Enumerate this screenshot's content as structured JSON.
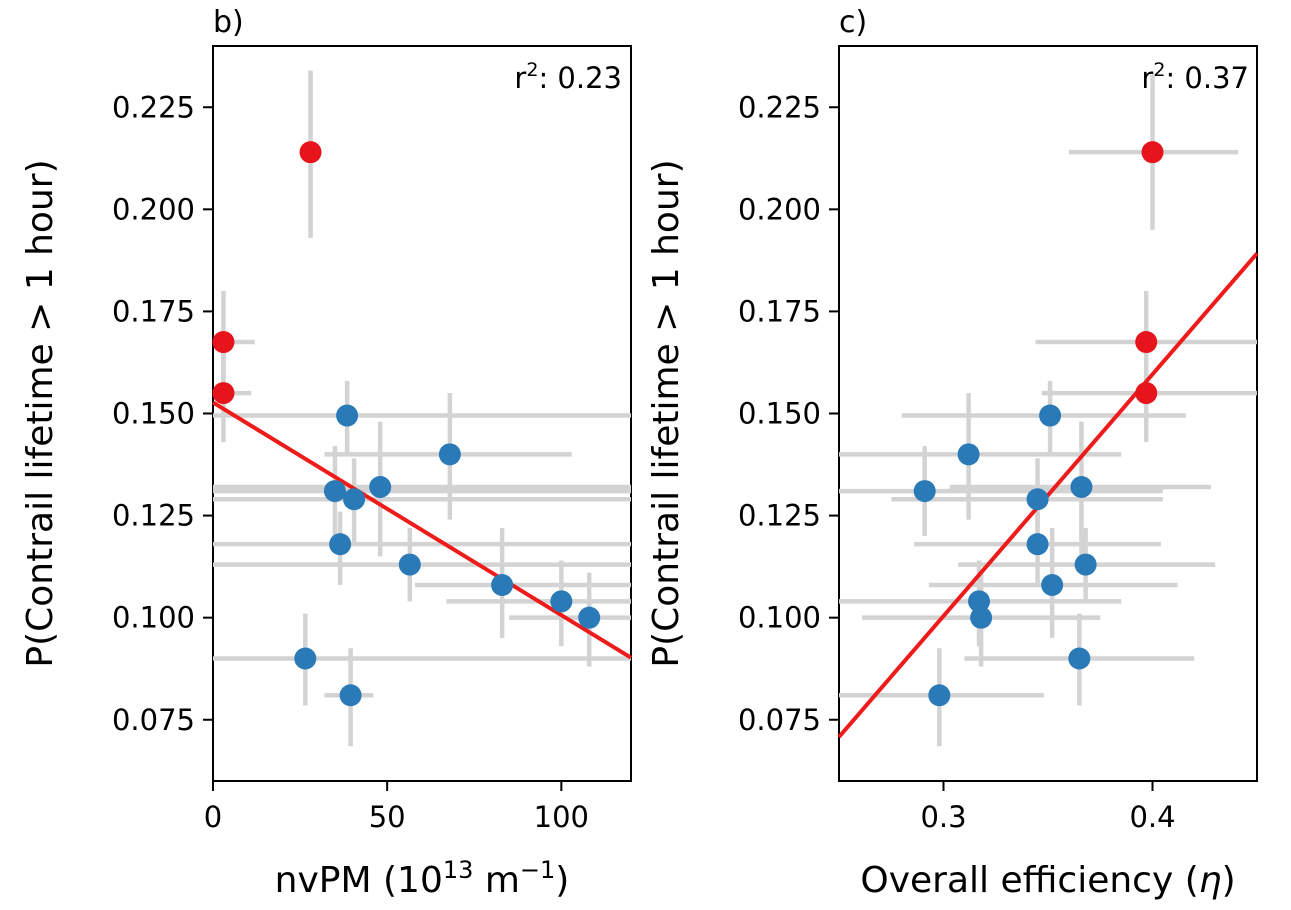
{
  "chart_data": [
    {
      "type": "scatter",
      "panel_label": "b)",
      "xlabel_main": "nvPM (10",
      "xlabel_exp1": "13",
      "xlabel_mid": " m",
      "xlabel_exp2": "−1",
      "xlabel_end": ")",
      "ylabel": "P(Contrail lifetime > 1 hour)",
      "annotation": {
        "prefix": "r",
        "sup": "2",
        "suffix": ": 0.23"
      },
      "xlim": [
        0,
        120
      ],
      "ylim": [
        0.06,
        0.24
      ],
      "xticks": [
        0,
        50,
        100
      ],
      "xtick_labels": [
        "0",
        "50",
        "100"
      ],
      "yticks": [
        0.075,
        0.1,
        0.125,
        0.15,
        0.175,
        0.2,
        0.225
      ],
      "ytick_labels": [
        "0.075",
        "0.100",
        "0.125",
        "0.150",
        "0.175",
        "0.200",
        "0.225"
      ],
      "fit_line": {
        "x": [
          0,
          120
        ],
        "y": [
          0.1527,
          0.0902
        ],
        "color": "#ee1b1b"
      },
      "series": [
        {
          "color": "#e8141c",
          "points": [
            {
              "x": 28,
              "y": 0.214,
              "xerr": [
                28,
                28
              ],
              "yerr": [
                0.193,
                0.234
              ]
            },
            {
              "x": 3,
              "y": 0.1675,
              "xerr": [
                0,
                12
              ],
              "yerr": [
                0.151,
                0.18
              ]
            },
            {
              "x": 3,
              "y": 0.155,
              "xerr": [
                0,
                11
              ],
              "yerr": [
                0.143,
                0.167
              ]
            }
          ]
        },
        {
          "color": "#2a7ab8",
          "points": [
            {
              "x": 38.5,
              "y": 0.1495,
              "xerr": [
                0,
                120
              ],
              "yerr": [
                0.14,
                0.158
              ]
            },
            {
              "x": 68,
              "y": 0.14,
              "xerr": [
                32,
                103
              ],
              "yerr": [
                0.124,
                0.155
              ]
            },
            {
              "x": 35,
              "y": 0.131,
              "xerr": [
                0,
                120
              ],
              "yerr": [
                0.12,
                0.142
              ]
            },
            {
              "x": 48,
              "y": 0.132,
              "xerr": [
                0,
                120
              ],
              "yerr": [
                0.115,
                0.148
              ]
            },
            {
              "x": 40.5,
              "y": 0.129,
              "xerr": [
                0,
                120
              ],
              "yerr": [
                0.118,
                0.139
              ]
            },
            {
              "x": 36.5,
              "y": 0.118,
              "xerr": [
                0,
                120
              ],
              "yerr": [
                0.108,
                0.126
              ]
            },
            {
              "x": 56.5,
              "y": 0.113,
              "xerr": [
                0,
                120
              ],
              "yerr": [
                0.104,
                0.122
              ]
            },
            {
              "x": 83,
              "y": 0.108,
              "xerr": [
                58,
                120
              ],
              "yerr": [
                0.095,
                0.122
              ]
            },
            {
              "x": 100,
              "y": 0.104,
              "xerr": [
                67,
                120
              ],
              "yerr": [
                0.093,
                0.114
              ]
            },
            {
              "x": 108,
              "y": 0.1,
              "xerr": [
                85,
                120
              ],
              "yerr": [
                0.088,
                0.111
              ]
            },
            {
              "x": 26.5,
              "y": 0.09,
              "xerr": [
                0,
                120
              ],
              "yerr": [
                0.0785,
                0.101
              ]
            },
            {
              "x": 39.5,
              "y": 0.081,
              "xerr": [
                32,
                46
              ],
              "yerr": [
                0.0685,
                0.0925
              ]
            }
          ]
        }
      ]
    },
    {
      "type": "scatter",
      "panel_label": "c)",
      "xlabel_main": "Overall efficiency (",
      "xlabel_sym": "η",
      "xlabel_end": ")",
      "ylabel": "P(Contrail lifetime > 1 hour)",
      "annotation": {
        "prefix": "r",
        "sup": "2",
        "suffix": ": 0.37"
      },
      "xlim": [
        0.25,
        0.45
      ],
      "ylim": [
        0.06,
        0.24
      ],
      "xticks": [
        0.3,
        0.4
      ],
      "xtick_labels": [
        "0.3",
        "0.4"
      ],
      "yticks": [
        0.075,
        0.1,
        0.125,
        0.15,
        0.175,
        0.2,
        0.225
      ],
      "ytick_labels": [
        "0.075",
        "0.100",
        "0.125",
        "0.150",
        "0.175",
        "0.200",
        "0.225"
      ],
      "fit_line": {
        "x": [
          0.25,
          0.45
        ],
        "y": [
          0.0708,
          0.1892
        ],
        "color": "#ee1b1b"
      },
      "series": [
        {
          "color": "#e8141c",
          "points": [
            {
              "x": 0.4,
              "y": 0.214,
              "xerr": [
                0.36,
                0.441
              ],
              "yerr": [
                0.195,
                0.233
              ]
            },
            {
              "x": 0.397,
              "y": 0.1675,
              "xerr": [
                0.344,
                0.45
              ],
              "yerr": [
                0.155,
                0.18
              ]
            },
            {
              "x": 0.397,
              "y": 0.155,
              "xerr": [
                0.347,
                0.45
              ],
              "yerr": [
                0.143,
                0.167
              ]
            }
          ]
        },
        {
          "color": "#2a7ab8",
          "points": [
            {
              "x": 0.351,
              "y": 0.1495,
              "xerr": [
                0.28,
                0.416
              ],
              "yerr": [
                0.14,
                0.158
              ]
            },
            {
              "x": 0.312,
              "y": 0.14,
              "xerr": [
                0.25,
                0.385
              ],
              "yerr": [
                0.124,
                0.155
              ]
            },
            {
              "x": 0.291,
              "y": 0.131,
              "xerr": [
                0.25,
                0.405
              ],
              "yerr": [
                0.12,
                0.142
              ]
            },
            {
              "x": 0.366,
              "y": 0.132,
              "xerr": [
                0.303,
                0.428
              ],
              "yerr": [
                0.115,
                0.148
              ]
            },
            {
              "x": 0.345,
              "y": 0.129,
              "xerr": [
                0.275,
                0.405
              ],
              "yerr": [
                0.118,
                0.139
              ]
            },
            {
              "x": 0.345,
              "y": 0.118,
              "xerr": [
                0.286,
                0.404
              ],
              "yerr": [
                0.108,
                0.126
              ]
            },
            {
              "x": 0.368,
              "y": 0.113,
              "xerr": [
                0.307,
                0.43
              ],
              "yerr": [
                0.104,
                0.122
              ]
            },
            {
              "x": 0.352,
              "y": 0.108,
              "xerr": [
                0.293,
                0.412
              ],
              "yerr": [
                0.095,
                0.122
              ]
            },
            {
              "x": 0.317,
              "y": 0.104,
              "xerr": [
                0.25,
                0.385
              ],
              "yerr": [
                0.093,
                0.114
              ]
            },
            {
              "x": 0.318,
              "y": 0.1,
              "xerr": [
                0.261,
                0.375
              ],
              "yerr": [
                0.088,
                0.111
              ]
            },
            {
              "x": 0.365,
              "y": 0.09,
              "xerr": [
                0.31,
                0.42
              ],
              "yerr": [
                0.0785,
                0.101
              ]
            },
            {
              "x": 0.298,
              "y": 0.081,
              "xerr": [
                0.25,
                0.348
              ],
              "yerr": [
                0.0685,
                0.0925
              ]
            }
          ]
        }
      ]
    }
  ]
}
